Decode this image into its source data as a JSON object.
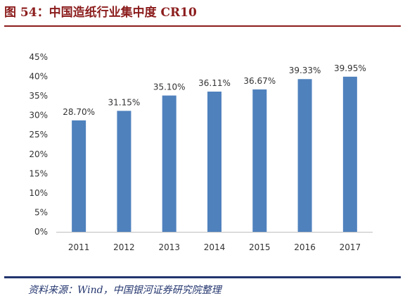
{
  "figure": {
    "title": "图 54：中国造纸行业集中度 CR10",
    "source": "资料来源：Wind，中国银河证券研究院整理"
  },
  "colors": {
    "bar": "#4f81bd",
    "title": "#8c1d1d",
    "rule_bottom": "#23356e",
    "axis": "#bfbfbf"
  },
  "chart_data": {
    "type": "bar",
    "title": "",
    "xlabel": "",
    "ylabel": "",
    "categories": [
      "2011",
      "2012",
      "2013",
      "2014",
      "2015",
      "2016",
      "2017"
    ],
    "values": [
      28.7,
      31.15,
      35.1,
      36.11,
      36.67,
      39.33,
      39.95
    ],
    "data_labels": [
      "28.70%",
      "31.15%",
      "35.10%",
      "36.11%",
      "36.67%",
      "39.33%",
      "39.95%"
    ],
    "ylim": [
      0,
      45
    ],
    "yticks": [
      0,
      5,
      10,
      15,
      20,
      25,
      30,
      35,
      40,
      45
    ],
    "ytick_labels": [
      "0%",
      "5%",
      "10%",
      "15%",
      "20%",
      "25%",
      "30%",
      "35%",
      "40%",
      "45%"
    ],
    "grid": false,
    "legend": "none"
  }
}
